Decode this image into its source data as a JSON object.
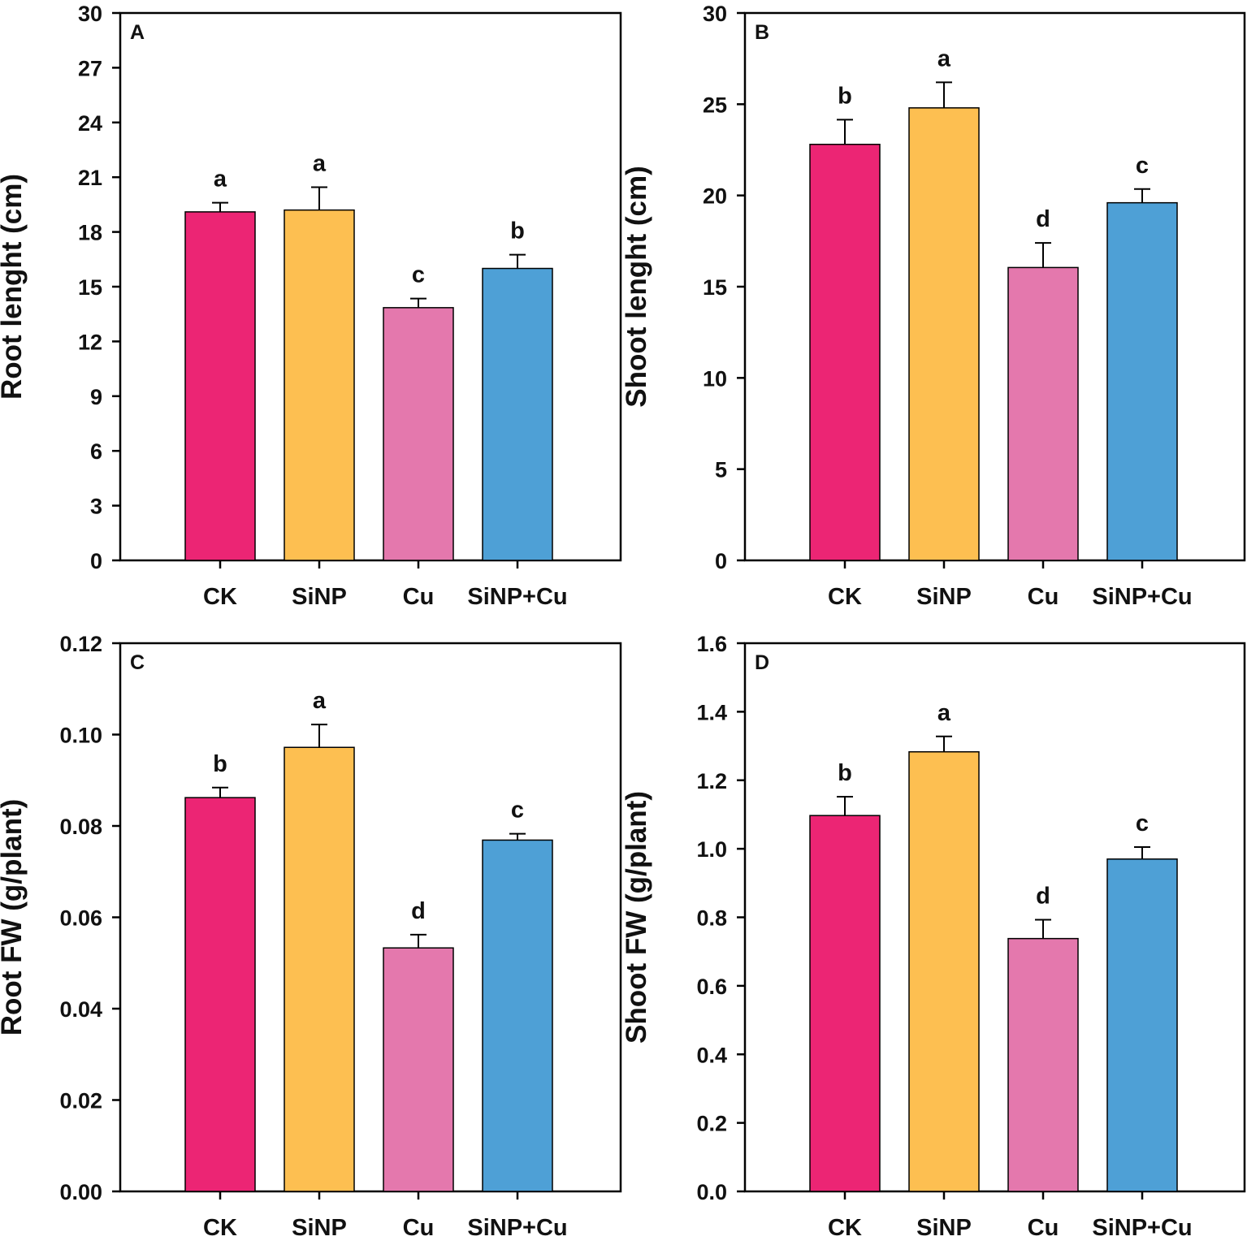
{
  "figure": {
    "categories": [
      "CK",
      "SiNP",
      "Cu",
      "SiNP+Cu"
    ]
  },
  "colors": {
    "CK": "#ec2574",
    "SiNP": "#fdbf51",
    "Cu": "#e478ad",
    "SiNP+Cu": "#4ea0d6",
    "axis": "#000000"
  },
  "chart_data": [
    {
      "type": "bar",
      "panel": "A",
      "title": "",
      "xlabel": "",
      "ylabel": "Root lenght (cm)",
      "categories": [
        "CK",
        "SiNP",
        "Cu",
        "SiNP+Cu"
      ],
      "values": [
        19.1,
        19.2,
        13.85,
        16.0
      ],
      "errors": [
        0.5,
        1.25,
        0.5,
        0.75
      ],
      "significance": [
        "a",
        "a",
        "c",
        "b"
      ],
      "ylim": [
        0,
        30
      ],
      "yticks": [
        0,
        3,
        6,
        9,
        12,
        15,
        18,
        21,
        24,
        27,
        30
      ],
      "ytick_labels": [
        "0",
        "3",
        "6",
        "9",
        "12",
        "15",
        "18",
        "21",
        "24",
        "27",
        "30"
      ]
    },
    {
      "type": "bar",
      "panel": "B",
      "title": "",
      "xlabel": "",
      "ylabel": "Shoot lenght (cm)",
      "categories": [
        "CK",
        "SiNP",
        "Cu",
        "SiNP+Cu"
      ],
      "values": [
        22.8,
        24.8,
        16.05,
        19.6
      ],
      "errors": [
        1.35,
        1.4,
        1.35,
        0.75
      ],
      "significance": [
        "b",
        "a",
        "d",
        "c"
      ],
      "ylim": [
        0,
        30
      ],
      "yticks": [
        0,
        5,
        10,
        15,
        20,
        25,
        30
      ],
      "ytick_labels": [
        "0",
        "5",
        "10",
        "15",
        "20",
        "25",
        "30"
      ]
    },
    {
      "type": "bar",
      "panel": "C",
      "title": "",
      "xlabel": "",
      "ylabel": "Root FW (g/plant)",
      "categories": [
        "CK",
        "SiNP",
        "Cu",
        "SiNP+Cu"
      ],
      "values": [
        0.0862,
        0.0972,
        0.0533,
        0.0769
      ],
      "errors": [
        0.0022,
        0.005,
        0.0029,
        0.0014
      ],
      "significance": [
        "b",
        "a",
        "d",
        "c"
      ],
      "ylim": [
        0,
        0.12
      ],
      "yticks": [
        0,
        0.02,
        0.04,
        0.06,
        0.08,
        0.1,
        0.12
      ],
      "ytick_labels": [
        "0.00",
        "0.02",
        "0.04",
        "0.06",
        "0.08",
        "0.10",
        "0.12"
      ]
    },
    {
      "type": "bar",
      "panel": "D",
      "title": "",
      "xlabel": "",
      "ylabel": "Shoot FW (g/plant)",
      "categories": [
        "CK",
        "SiNP",
        "Cu",
        "SiNP+Cu"
      ],
      "values": [
        1.097,
        1.283,
        0.738,
        0.97
      ],
      "errors": [
        0.055,
        0.045,
        0.055,
        0.035
      ],
      "significance": [
        "b",
        "a",
        "d",
        "c"
      ],
      "ylim": [
        0,
        1.6
      ],
      "yticks": [
        0,
        0.2,
        0.4,
        0.6,
        0.8,
        1.0,
        1.2,
        1.4,
        1.6
      ],
      "ytick_labels": [
        "0.0",
        "0.2",
        "0.4",
        "0.6",
        "0.8",
        "1.0",
        "1.2",
        "1.4",
        "1.6"
      ]
    }
  ]
}
